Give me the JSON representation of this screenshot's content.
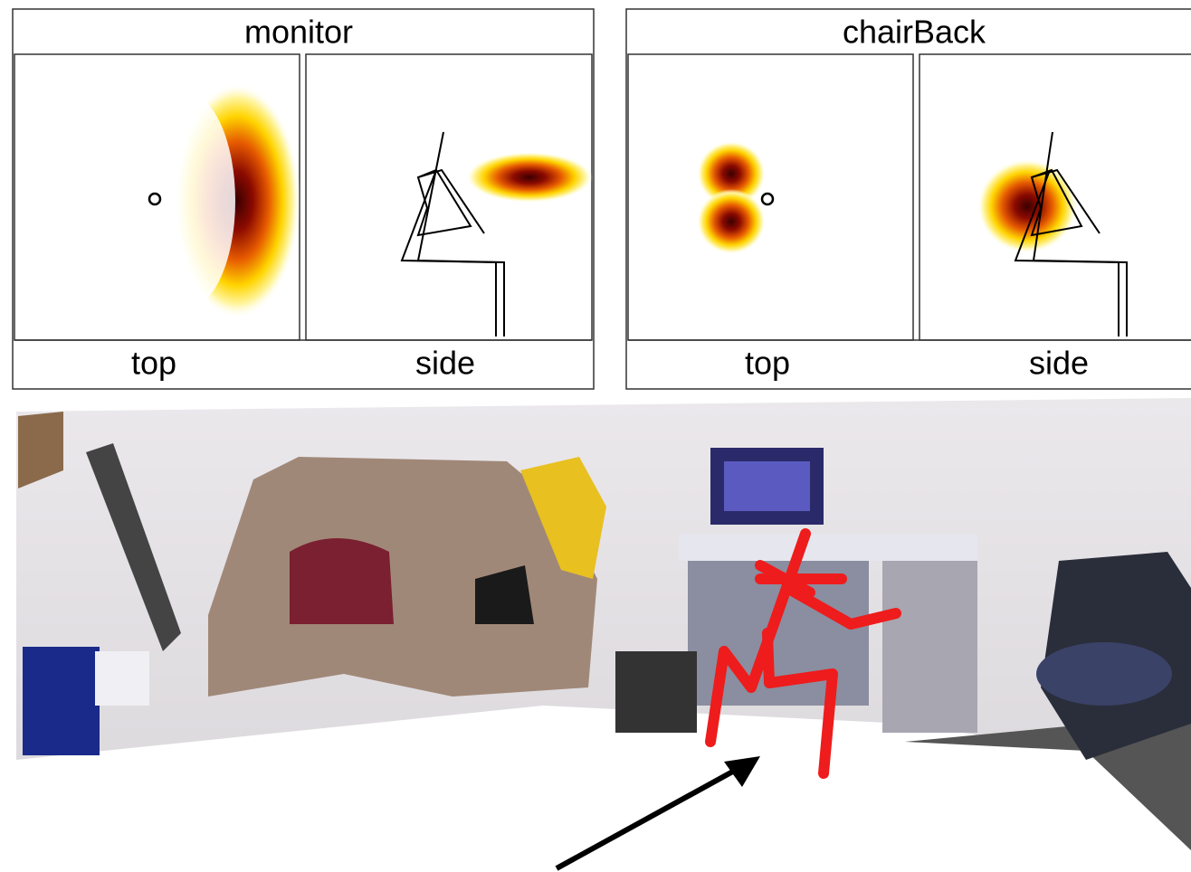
{
  "panels": [
    {
      "title": "monitor",
      "views": [
        "top",
        "side"
      ]
    },
    {
      "title": "chairBack",
      "views": [
        "top",
        "side"
      ]
    }
  ]
}
